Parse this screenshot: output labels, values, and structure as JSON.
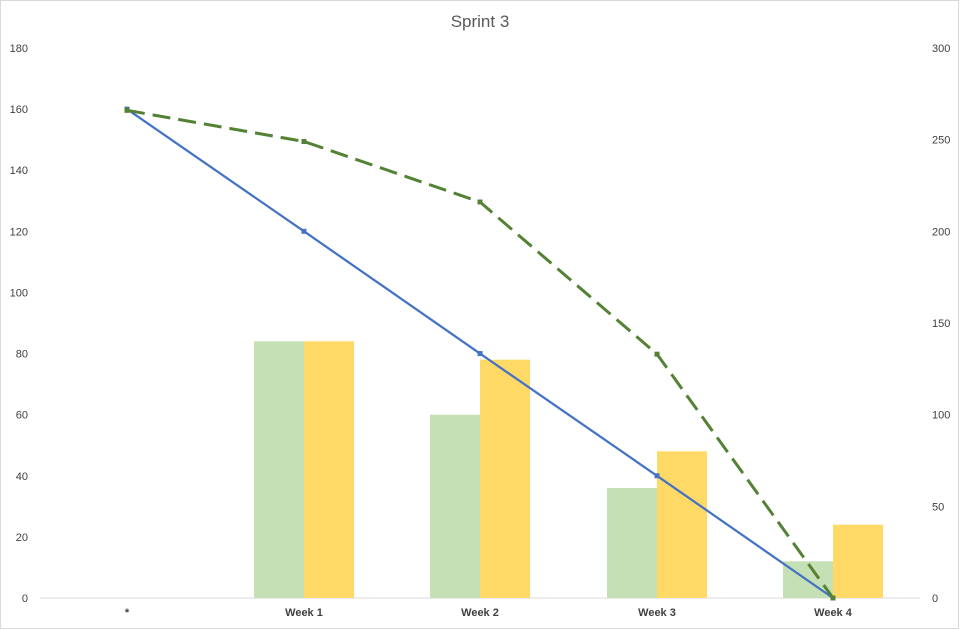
{
  "chart_data": {
    "type": "bar",
    "title": "Sprint 3",
    "categories": [
      "*",
      "Week 1",
      "Week 2",
      "Week 3",
      "Week 4"
    ],
    "ylim": [
      0,
      180
    ],
    "y_ticks": [
      0,
      20,
      40,
      60,
      80,
      100,
      120,
      140,
      160,
      180
    ],
    "y2lim": [
      0,
      300
    ],
    "y2_ticks": [
      0,
      50,
      100,
      150,
      200,
      250,
      300
    ],
    "grid": false,
    "legend": "none",
    "series": [
      {
        "kind": "bar",
        "axis": "left",
        "color": "#c5e0b4",
        "values": [
          null,
          84,
          60,
          36,
          12
        ]
      },
      {
        "kind": "bar",
        "axis": "left",
        "color": "#ffd966",
        "values": [
          null,
          84,
          78,
          48,
          24
        ]
      },
      {
        "kind": "line",
        "axis": "left",
        "color": "#4472c4",
        "dash": false,
        "values": [
          160,
          120,
          80,
          40,
          0
        ]
      },
      {
        "kind": "line",
        "axis": "right",
        "color": "#548235",
        "dash": true,
        "values": [
          266,
          249,
          216,
          133,
          0
        ]
      }
    ]
  }
}
